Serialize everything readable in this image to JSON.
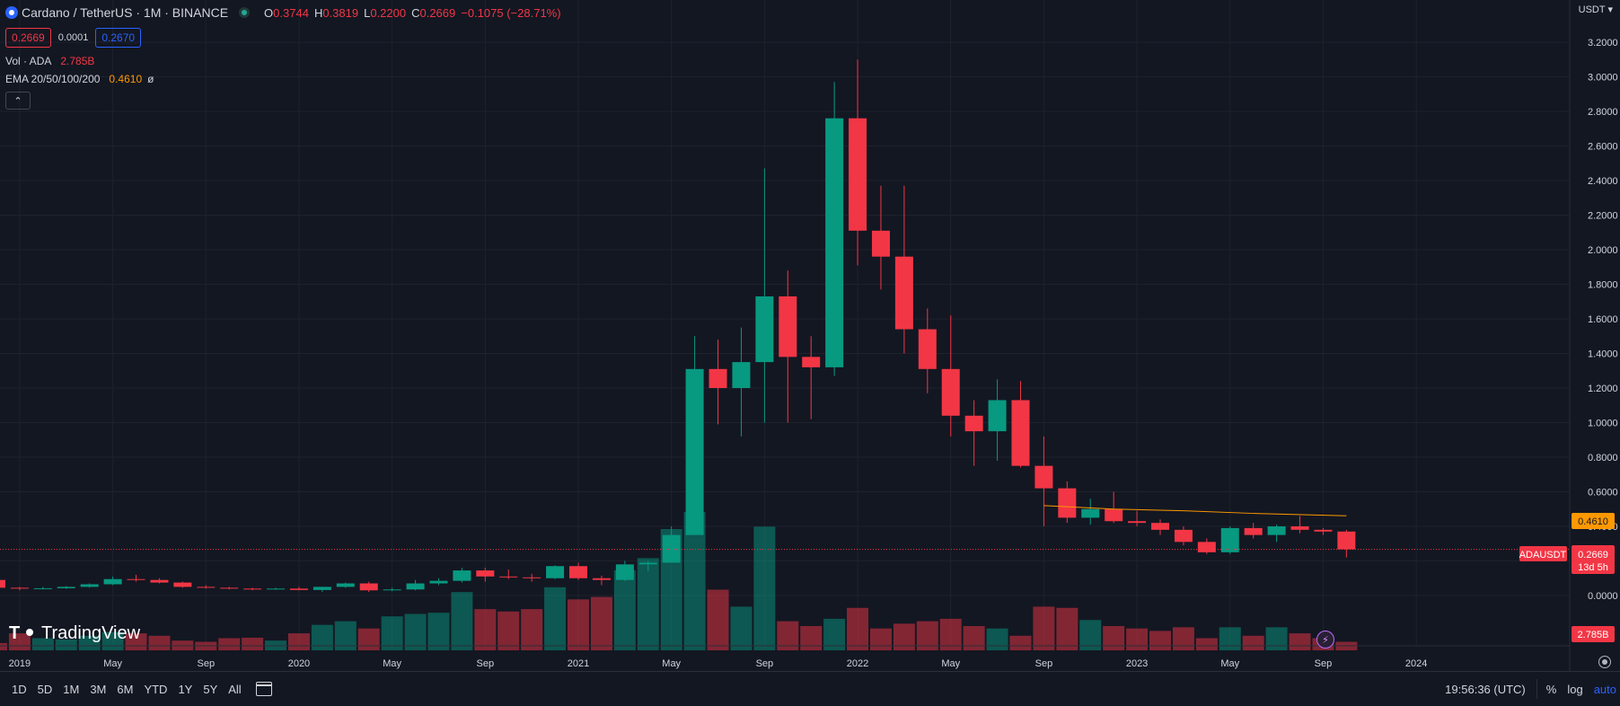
{
  "legend": {
    "title": "Cardano / TetherUS · 1M · BINANCE",
    "open_label": "O",
    "open": "0.3744",
    "high_label": "H",
    "high": "0.3819",
    "low_label": "L",
    "low": "0.2200",
    "close_label": "C",
    "close": "0.2669",
    "change": "−0.1075 (−28.71%)",
    "bid": "0.2669",
    "spread": "0.0001",
    "ask": "0.2670",
    "volume_label": "Vol · ADA",
    "volume_value": "2.785B",
    "ema_label": "EMA 20/50/100/200",
    "ema_value": "0.4610",
    "ema_extra": "ø"
  },
  "axis": {
    "currency": "USDT"
  },
  "tags": {
    "ema": "0.4610",
    "symbol": "ADAUSDT",
    "price": "0.2669",
    "countdown": "13d 5h",
    "volume": "2.785B"
  },
  "colors": {
    "up": "#089981",
    "down": "#f23645",
    "ema": "#ff9800",
    "bg": "#131722",
    "grid": "#1e222d"
  },
  "toolbar": {
    "timeframes": [
      "1D",
      "5D",
      "1M",
      "3M",
      "6M",
      "YTD",
      "1Y",
      "5Y",
      "All"
    ],
    "clock": "19:56:36 (UTC)",
    "percent": "%",
    "log": "log",
    "auto": "auto"
  },
  "chart_data": {
    "type": "candlestick",
    "title": "Cardano / TetherUS · 1M · BINANCE",
    "price_ticks": [
      3.2,
      3.0,
      2.8,
      2.6,
      2.4,
      2.2,
      2.0,
      1.8,
      1.6,
      1.4,
      1.2,
      1.0,
      0.8,
      0.6,
      0.4,
      0.2,
      0.0
    ],
    "price_tick_labels": [
      "3.2000",
      "3.0000",
      "2.8000",
      "2.6000",
      "2.4000",
      "2.2000",
      "2.0000",
      "1.8000",
      "1.6000",
      "1.4000",
      "1.2000",
      "1.0000",
      "0.8000",
      "0.6000",
      "0.4000",
      "0.2000",
      "0.0000"
    ],
    "time_labels": [
      "2019",
      "May",
      "Sep",
      "2020",
      "May",
      "Sep",
      "2021",
      "May",
      "Sep",
      "2022",
      "May",
      "Sep",
      "2023",
      "May",
      "Sep",
      "2024"
    ],
    "time_label_months": [
      1,
      5,
      9,
      13,
      17,
      21,
      25,
      29,
      33,
      37,
      41,
      45,
      49,
      53,
      57,
      61
    ],
    "first_month": "2018-11",
    "candles": [
      {
        "o": 0.09,
        "h": 0.095,
        "l": 0.04,
        "c": 0.045
      },
      {
        "o": 0.045,
        "h": 0.05,
        "l": 0.03,
        "c": 0.04
      },
      {
        "o": 0.04,
        "h": 0.05,
        "l": 0.035,
        "c": 0.042
      },
      {
        "o": 0.042,
        "h": 0.055,
        "l": 0.038,
        "c": 0.05
      },
      {
        "o": 0.05,
        "h": 0.07,
        "l": 0.045,
        "c": 0.065
      },
      {
        "o": 0.065,
        "h": 0.11,
        "l": 0.06,
        "c": 0.095
      },
      {
        "o": 0.095,
        "h": 0.12,
        "l": 0.08,
        "c": 0.09
      },
      {
        "o": 0.09,
        "h": 0.1,
        "l": 0.07,
        "c": 0.075
      },
      {
        "o": 0.075,
        "h": 0.08,
        "l": 0.045,
        "c": 0.05
      },
      {
        "o": 0.05,
        "h": 0.06,
        "l": 0.04,
        "c": 0.045
      },
      {
        "o": 0.045,
        "h": 0.05,
        "l": 0.035,
        "c": 0.04
      },
      {
        "o": 0.04,
        "h": 0.045,
        "l": 0.03,
        "c": 0.035
      },
      {
        "o": 0.035,
        "h": 0.045,
        "l": 0.033,
        "c": 0.04
      },
      {
        "o": 0.04,
        "h": 0.05,
        "l": 0.03,
        "c": 0.032
      },
      {
        "o": 0.032,
        "h": 0.05,
        "l": 0.02,
        "c": 0.05
      },
      {
        "o": 0.05,
        "h": 0.075,
        "l": 0.045,
        "c": 0.07
      },
      {
        "o": 0.07,
        "h": 0.08,
        "l": 0.02,
        "c": 0.03
      },
      {
        "o": 0.03,
        "h": 0.045,
        "l": 0.025,
        "c": 0.035
      },
      {
        "o": 0.035,
        "h": 0.09,
        "l": 0.03,
        "c": 0.07
      },
      {
        "o": 0.07,
        "h": 0.1,
        "l": 0.06,
        "c": 0.085
      },
      {
        "o": 0.085,
        "h": 0.16,
        "l": 0.075,
        "c": 0.145
      },
      {
        "o": 0.145,
        "h": 0.16,
        "l": 0.08,
        "c": 0.11
      },
      {
        "o": 0.11,
        "h": 0.15,
        "l": 0.095,
        "c": 0.105
      },
      {
        "o": 0.105,
        "h": 0.125,
        "l": 0.08,
        "c": 0.1
      },
      {
        "o": 0.1,
        "h": 0.175,
        "l": 0.095,
        "c": 0.17
      },
      {
        "o": 0.17,
        "h": 0.19,
        "l": 0.09,
        "c": 0.1
      },
      {
        "o": 0.1,
        "h": 0.115,
        "l": 0.06,
        "c": 0.09
      },
      {
        "o": 0.09,
        "h": 0.2,
        "l": 0.085,
        "c": 0.18
      },
      {
        "o": 0.18,
        "h": 0.2,
        "l": 0.14,
        "c": 0.19
      },
      {
        "o": 0.19,
        "h": 0.4,
        "l": 0.19,
        "c": 0.35
      },
      {
        "o": 0.35,
        "h": 1.5,
        "l": 0.35,
        "c": 1.31
      },
      {
        "o": 1.31,
        "h": 1.48,
        "l": 0.99,
        "c": 1.2
      },
      {
        "o": 1.2,
        "h": 1.55,
        "l": 0.92,
        "c": 1.35
      },
      {
        "o": 1.35,
        "h": 2.47,
        "l": 1.0,
        "c": 1.73
      },
      {
        "o": 1.73,
        "h": 1.88,
        "l": 1.0,
        "c": 1.38
      },
      {
        "o": 1.38,
        "h": 1.5,
        "l": 1.02,
        "c": 1.32
      },
      {
        "o": 1.32,
        "h": 2.97,
        "l": 1.27,
        "c": 2.76
      },
      {
        "o": 2.76,
        "h": 3.1,
        "l": 1.91,
        "c": 2.11
      },
      {
        "o": 2.11,
        "h": 2.37,
        "l": 1.77,
        "c": 1.96
      },
      {
        "o": 1.96,
        "h": 2.37,
        "l": 1.4,
        "c": 1.54
      },
      {
        "o": 1.54,
        "h": 1.66,
        "l": 1.17,
        "c": 1.31
      },
      {
        "o": 1.31,
        "h": 1.62,
        "l": 0.92,
        "c": 1.04
      },
      {
        "o": 1.04,
        "h": 1.13,
        "l": 0.75,
        "c": 0.95
      },
      {
        "o": 0.95,
        "h": 1.25,
        "l": 0.78,
        "c": 1.13
      },
      {
        "o": 1.13,
        "h": 1.24,
        "l": 0.74,
        "c": 0.75
      },
      {
        "o": 0.75,
        "h": 0.92,
        "l": 0.4,
        "c": 0.62
      },
      {
        "o": 0.62,
        "h": 0.66,
        "l": 0.42,
        "c": 0.45
      },
      {
        "o": 0.45,
        "h": 0.56,
        "l": 0.41,
        "c": 0.5
      },
      {
        "o": 0.5,
        "h": 0.6,
        "l": 0.42,
        "c": 0.43
      },
      {
        "o": 0.43,
        "h": 0.49,
        "l": 0.4,
        "c": 0.42
      },
      {
        "o": 0.42,
        "h": 0.44,
        "l": 0.35,
        "c": 0.38
      },
      {
        "o": 0.38,
        "h": 0.4,
        "l": 0.29,
        "c": 0.31
      },
      {
        "o": 0.31,
        "h": 0.33,
        "l": 0.24,
        "c": 0.25
      },
      {
        "o": 0.25,
        "h": 0.4,
        "l": 0.24,
        "c": 0.39
      },
      {
        "o": 0.39,
        "h": 0.42,
        "l": 0.33,
        "c": 0.35
      },
      {
        "o": 0.35,
        "h": 0.41,
        "l": 0.31,
        "c": 0.4
      },
      {
        "o": 0.4,
        "h": 0.46,
        "l": 0.36,
        "c": 0.38
      },
      {
        "o": 0.38,
        "h": 0.39,
        "l": 0.35,
        "c": 0.37
      },
      {
        "o": 0.37,
        "h": 0.38,
        "l": 0.22,
        "c": 0.2669
      }
    ],
    "volume": [
      0.3,
      0.7,
      0.5,
      0.45,
      0.6,
      0.75,
      0.7,
      0.6,
      0.4,
      0.35,
      0.5,
      0.52,
      0.4,
      0.7,
      1.05,
      1.2,
      0.9,
      1.4,
      1.5,
      1.55,
      2.4,
      1.7,
      1.6,
      1.7,
      2.6,
      2.1,
      2.2,
      3.3,
      3.8,
      5.0,
      5.7,
      2.5,
      1.8,
      5.1,
      1.2,
      1.0,
      1.3,
      1.75,
      0.9,
      1.1,
      1.2,
      1.3,
      1.0,
      0.9,
      0.6,
      1.8,
      1.75,
      1.25,
      1.0,
      0.9,
      0.8,
      0.95,
      0.5,
      0.95,
      0.6,
      0.95,
      0.7,
      0.5,
      0.35
    ],
    "ema": [
      {
        "m": 45,
        "v": 0.52
      },
      {
        "m": 48,
        "v": 0.5
      },
      {
        "m": 51,
        "v": 0.49
      },
      {
        "m": 54,
        "v": 0.475
      },
      {
        "m": 58,
        "v": 0.461
      }
    ],
    "last_price": 0.2669
  }
}
